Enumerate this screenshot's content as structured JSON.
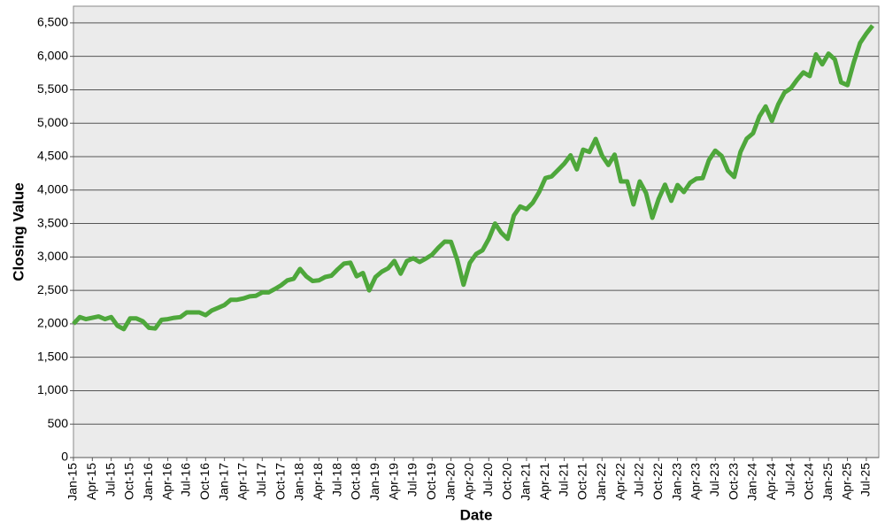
{
  "chart_data": {
    "type": "line",
    "xlabel": "Date",
    "ylabel": "Closing Value",
    "categories": [
      "Jan-15",
      null,
      null,
      "Apr-15",
      null,
      null,
      "Jul-15",
      null,
      null,
      "Oct-15",
      null,
      null,
      "Jan-16",
      null,
      null,
      "Apr-16",
      null,
      null,
      "Jul-16",
      null,
      null,
      "Oct-16",
      null,
      null,
      "Jan-17",
      null,
      null,
      "Apr-17",
      null,
      null,
      "Jul-17",
      null,
      null,
      "Oct-17",
      null,
      null,
      "Jan-18",
      null,
      null,
      "Apr-18",
      null,
      null,
      "Jul-18",
      null,
      null,
      "Oct-18",
      null,
      null,
      "Jan-19",
      null,
      null,
      "Apr-19",
      null,
      null,
      "Jul-19",
      null,
      null,
      "Oct-19",
      null,
      null,
      "Jan-20",
      null,
      null,
      "Apr-20",
      null,
      null,
      "Jul-20",
      null,
      null,
      "Oct-20",
      null,
      null,
      "Jan-21",
      null,
      null,
      "Apr-21",
      null,
      null,
      "Jul-21",
      null,
      null,
      "Oct-21",
      null,
      null,
      "Jan-22",
      null,
      null,
      "Apr-22",
      null,
      null,
      "Jul-22",
      null,
      null,
      "Oct-22",
      null,
      null,
      "Jan-23",
      null,
      null,
      "Apr-23",
      null,
      null,
      "Jul-23",
      null,
      null,
      "Oct-23",
      null,
      null,
      "Jan-24",
      null,
      null,
      "Apr-24",
      null,
      null,
      "Jul-24",
      null,
      null,
      "Oct-24",
      null,
      null,
      "Jan-25",
      null,
      null,
      "Apr-25",
      null,
      null,
      "Jul-25",
      null
    ],
    "values": [
      2000,
      2100,
      2070,
      2090,
      2110,
      2070,
      2100,
      1970,
      1920,
      2080,
      2080,
      2040,
      1940,
      1930,
      2060,
      2070,
      2090,
      2100,
      2170,
      2170,
      2170,
      2130,
      2200,
      2240,
      2280,
      2360,
      2360,
      2380,
      2410,
      2420,
      2470,
      2470,
      2520,
      2575,
      2650,
      2675,
      2820,
      2710,
      2640,
      2650,
      2700,
      2720,
      2815,
      2900,
      2915,
      2710,
      2760,
      2500,
      2700,
      2780,
      2830,
      2940,
      2750,
      2940,
      2980,
      2925,
      2975,
      3035,
      3140,
      3230,
      3225,
      2955,
      2585,
      2910,
      3045,
      3100,
      3270,
      3500,
      3360,
      3270,
      3620,
      3755,
      3715,
      3810,
      3970,
      4180,
      4205,
      4300,
      4395,
      4520,
      4310,
      4605,
      4570,
      4765,
      4515,
      4375,
      4530,
      4130,
      4130,
      3785,
      4130,
      3955,
      3585,
      3870,
      4080,
      3840,
      4075,
      3970,
      4110,
      4170,
      4180,
      4450,
      4590,
      4510,
      4290,
      4195,
      4570,
      4770,
      4850,
      5100,
      5250,
      5035,
      5280,
      5460,
      5520,
      5650,
      5760,
      5705,
      6030,
      5880,
      6040,
      5955,
      5610,
      5570,
      5910,
      6200,
      6340,
      6460
    ],
    "color": "#4ea73b",
    "ylim": [
      0,
      6750
    ],
    "yticks": [
      0,
      500,
      {
        "value": 1000,
        "label": "1,000"
      },
      {
        "value": 1500,
        "label": "1,500"
      },
      {
        "value": 2000,
        "label": "2,000"
      },
      {
        "value": 2500,
        "label": "2,500"
      },
      {
        "value": 3000,
        "label": "3,000"
      },
      {
        "value": 3500,
        "label": "3,500"
      },
      {
        "value": 4000,
        "label": "4,000"
      },
      {
        "value": 4500,
        "label": "4,500"
      },
      {
        "value": 5000,
        "label": "5,000"
      },
      {
        "value": 5500,
        "label": "5,500"
      },
      {
        "value": 6000,
        "label": "6,000"
      },
      {
        "value": 6500,
        "label": "6,500"
      }
    ],
    "grid": true
  }
}
